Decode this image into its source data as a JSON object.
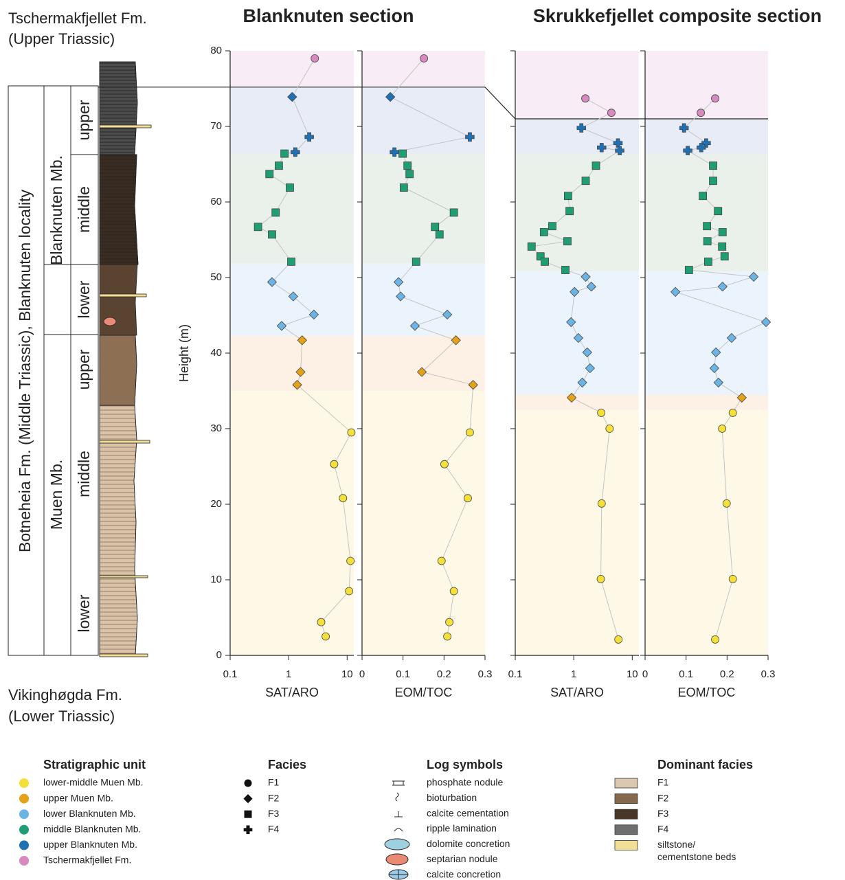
{
  "top_unit": [
    "Tschermakfjellet Fm.",
    "(Upper Triassic)"
  ],
  "bottom_unit": [
    "Vikinghøgda Fm.",
    "(Lower Triassic)"
  ],
  "stratigraphy": {
    "formation": "Botneheia Fm. (Middle Triassic), Blanknuten locality",
    "members": [
      {
        "name": "Blanknuten Mb.",
        "subunits": [
          "upper",
          "middle",
          "lower"
        ]
      },
      {
        "name": "Muen Mb.",
        "subunits": [
          "upper",
          "middle",
          "lower"
        ]
      }
    ]
  },
  "chart_data": [
    {
      "type": "scatter",
      "title": "Blanknuten section",
      "xlabel": "SAT/ARO",
      "ylabel": "Height (m)",
      "xscale": "log",
      "xlim": [
        0.1,
        13
      ],
      "xticks": [
        0.1,
        1,
        10
      ],
      "ylim": [
        0,
        80
      ],
      "yticks": [
        0,
        10,
        20,
        30,
        40,
        50,
        60,
        70,
        80
      ],
      "bands": [
        {
          "bottom": 0,
          "top": 35,
          "color": "#fdf9e6"
        },
        {
          "bottom": 35,
          "top": 42.3,
          "color": "#fdf0e4"
        },
        {
          "bottom": 42.3,
          "top": 51.9,
          "color": "#ebf3fc"
        },
        {
          "bottom": 51.9,
          "top": 66.3,
          "color": "#e9f1ea"
        },
        {
          "bottom": 66.3,
          "top": 75.2,
          "color": "#e7ecf6"
        },
        {
          "bottom": 75.2,
          "top": 80,
          "color": "#f8ecf6"
        }
      ],
      "series": [
        {
          "color": "#d889c0",
          "marker": "circle",
          "x": [
            2.8
          ],
          "y": [
            79.0
          ]
        },
        {
          "color": "#2070b4",
          "marker": "diamond",
          "x": [
            1.15
          ],
          "y": [
            73.9
          ]
        },
        {
          "color": "#2070b4",
          "marker": "cross",
          "x": [
            2.25,
            1.3
          ],
          "y": [
            68.6,
            66.6
          ]
        },
        {
          "color": "#1e9e72",
          "marker": "square",
          "x": [
            0.85,
            0.68,
            0.47,
            1.05,
            0.6,
            0.3,
            0.52,
            1.11
          ],
          "y": [
            66.4,
            64.8,
            63.7,
            61.9,
            58.6,
            56.7,
            55.7,
            52.1
          ]
        },
        {
          "color": "#6cb4e4",
          "marker": "diamond",
          "x": [
            0.52,
            1.2,
            2.7,
            0.76
          ],
          "y": [
            49.4,
            47.5,
            45.1,
            43.6
          ]
        },
        {
          "color": "#e3a21a",
          "marker": "diamond",
          "x": [
            1.7,
            1.6,
            1.4
          ],
          "y": [
            41.7,
            37.5,
            35.8
          ]
        },
        {
          "color": "#f5e03a",
          "marker": "circle",
          "x": [
            11.8,
            6.0,
            8.5,
            11.4,
            10.8,
            3.6,
            4.3
          ],
          "y": [
            29.5,
            25.3,
            20.8,
            12.5,
            8.5,
            4.4,
            2.5
          ]
        }
      ]
    },
    {
      "type": "scatter",
      "xlabel": "EOM/TOC",
      "xscale": "linear",
      "xlim": [
        0,
        0.3
      ],
      "xticks": [
        0,
        0.1,
        0.2,
        0.3
      ],
      "ylim": [
        0,
        80
      ],
      "bands": [
        {
          "bottom": 0,
          "top": 35,
          "color": "#fdf9e6"
        },
        {
          "bottom": 35,
          "top": 42.3,
          "color": "#fdf0e4"
        },
        {
          "bottom": 42.3,
          "top": 51.9,
          "color": "#ebf3fc"
        },
        {
          "bottom": 51.9,
          "top": 66.3,
          "color": "#e9f1ea"
        },
        {
          "bottom": 66.3,
          "top": 75.2,
          "color": "#e7ecf6"
        },
        {
          "bottom": 75.2,
          "top": 80,
          "color": "#f8ecf6"
        }
      ],
      "series": [
        {
          "color": "#d889c0",
          "marker": "circle",
          "x": [
            0.151
          ],
          "y": [
            79.0
          ]
        },
        {
          "color": "#2070b4",
          "marker": "diamond",
          "x": [
            0.069
          ],
          "y": [
            73.9
          ]
        },
        {
          "color": "#2070b4",
          "marker": "cross",
          "x": [
            0.263,
            0.079
          ],
          "y": [
            68.6,
            66.6
          ]
        },
        {
          "color": "#1e9e72",
          "marker": "square",
          "x": [
            0.099,
            0.111,
            0.116,
            0.102,
            0.224,
            0.178,
            0.189,
            0.132
          ],
          "y": [
            66.4,
            64.8,
            63.7,
            61.9,
            58.6,
            56.7,
            55.7,
            52.1
          ]
        },
        {
          "color": "#6cb4e4",
          "marker": "diamond",
          "x": [
            0.089,
            0.094,
            0.208,
            0.129
          ],
          "y": [
            49.4,
            47.5,
            45.1,
            43.6
          ]
        },
        {
          "color": "#e3a21a",
          "marker": "diamond",
          "x": [
            0.229,
            0.146,
            0.271
          ],
          "y": [
            41.7,
            37.5,
            35.8
          ]
        },
        {
          "color": "#f5e03a",
          "marker": "circle",
          "x": [
            0.263,
            0.201,
            0.258,
            0.194,
            0.224,
            0.213,
            0.208
          ],
          "y": [
            29.5,
            25.3,
            20.8,
            12.5,
            8.5,
            4.4,
            2.5
          ]
        }
      ]
    },
    {
      "type": "scatter",
      "title": "Skrukkefjellet composite section",
      "xlabel": "SAT/ARO",
      "xscale": "log",
      "xlim": [
        0.1,
        13
      ],
      "xticks": [
        0.1,
        1,
        10
      ],
      "ylim": [
        0,
        80
      ],
      "bands": [
        {
          "bottom": 0,
          "top": 32.5,
          "color": "#fdf9e6"
        },
        {
          "bottom": 32.5,
          "top": 34.5,
          "color": "#fdf0e4"
        },
        {
          "bottom": 34.5,
          "top": 50.8,
          "color": "#ebf3fc"
        },
        {
          "bottom": 50.8,
          "top": 66.3,
          "color": "#e9f1ea"
        },
        {
          "bottom": 66.3,
          "top": 71,
          "color": "#e7ecf6"
        },
        {
          "bottom": 71,
          "top": 80,
          "color": "#f8ecf6"
        }
      ],
      "series": [
        {
          "color": "#d889c0",
          "marker": "circle",
          "x": [
            1.58,
            4.4
          ],
          "y": [
            73.7,
            71.8
          ]
        },
        {
          "color": "#2070b4",
          "marker": "cross",
          "x": [
            1.35,
            5.7,
            3.0,
            6.1
          ],
          "y": [
            69.8,
            67.8,
            67.2,
            66.8
          ]
        },
        {
          "color": "#1e9e72",
          "marker": "square",
          "x": [
            2.4,
            1.6,
            0.8,
            0.85,
            0.43,
            0.31,
            0.78,
            0.19,
            0.27,
            0.32,
            0.72
          ],
          "y": [
            64.8,
            62.8,
            60.8,
            58.8,
            56.8,
            56.0,
            54.8,
            54.1,
            52.8,
            52.1,
            51.0
          ]
        },
        {
          "color": "#6cb4e4",
          "marker": "diamond",
          "x": [
            1.6,
            2.0,
            1.03,
            0.9,
            1.2,
            1.7,
            1.9,
            1.4
          ],
          "y": [
            50.1,
            48.8,
            48.1,
            44.1,
            42.0,
            40.1,
            38.0,
            36.1
          ]
        },
        {
          "color": "#e3a21a",
          "marker": "diamond",
          "x": [
            0.92
          ],
          "y": [
            34.1
          ]
        },
        {
          "color": "#f5e03a",
          "marker": "circle",
          "x": [
            2.95,
            4.1,
            3.0,
            2.9,
            5.8
          ],
          "y": [
            32.1,
            30.0,
            20.1,
            10.1,
            2.1
          ]
        }
      ]
    },
    {
      "type": "scatter",
      "xlabel": "EOM/TOC",
      "xscale": "linear",
      "xlim": [
        0,
        0.3
      ],
      "xticks": [
        0,
        0.1,
        0.2,
        0.3
      ],
      "ylim": [
        0,
        80
      ],
      "bands": [
        {
          "bottom": 0,
          "top": 32.5,
          "color": "#fdf9e6"
        },
        {
          "bottom": 32.5,
          "top": 34.5,
          "color": "#fdf0e4"
        },
        {
          "bottom": 34.5,
          "top": 50.8,
          "color": "#ebf3fc"
        },
        {
          "bottom": 50.8,
          "top": 66.3,
          "color": "#e9f1ea"
        },
        {
          "bottom": 66.3,
          "top": 71,
          "color": "#e7ecf6"
        },
        {
          "bottom": 71,
          "top": 80,
          "color": "#f8ecf6"
        }
      ],
      "series": [
        {
          "color": "#d889c0",
          "marker": "circle",
          "x": [
            0.171,
            0.136
          ],
          "y": [
            73.7,
            71.8
          ]
        },
        {
          "color": "#2070b4",
          "marker": "cross",
          "x": [
            0.095,
            0.149,
            0.137,
            0.104
          ],
          "y": [
            69.8,
            67.8,
            67.2,
            66.8
          ]
        },
        {
          "color": "#1e9e72",
          "marker": "square",
          "x": [
            0.166,
            0.166,
            0.141,
            0.178,
            0.151,
            0.189,
            0.152,
            0.188,
            0.194,
            0.154,
            0.107
          ],
          "y": [
            64.8,
            62.8,
            60.8,
            58.8,
            56.8,
            56.0,
            54.8,
            54.1,
            52.8,
            52.1,
            51.0
          ]
        },
        {
          "color": "#6cb4e4",
          "marker": "diamond",
          "x": [
            0.265,
            0.189,
            0.074,
            0.295,
            0.211,
            0.173,
            0.169,
            0.179
          ],
          "y": [
            50.1,
            48.8,
            48.1,
            44.1,
            42.0,
            40.1,
            38.0,
            36.1
          ]
        },
        {
          "color": "#e3a21a",
          "marker": "diamond",
          "x": [
            0.236
          ],
          "y": [
            34.1
          ]
        },
        {
          "color": "#f5e03a",
          "marker": "circle",
          "x": [
            0.214,
            0.188,
            0.199,
            0.214,
            0.171
          ],
          "y": [
            32.1,
            30.0,
            20.1,
            10.1,
            2.1
          ]
        }
      ]
    }
  ],
  "legends": {
    "units": {
      "title": "Stratigraphic unit",
      "items": [
        {
          "name": "lower-middle Muen Mb.",
          "color": "#f5e03a"
        },
        {
          "name": "upper Muen Mb.",
          "color": "#e3a21a"
        },
        {
          "name": "lower Blanknuten Mb.",
          "color": "#6cb4e4"
        },
        {
          "name": "middle Blanknuten Mb.",
          "color": "#1e9e72"
        },
        {
          "name": "upper Blanknuten Mb.",
          "color": "#2070b4"
        },
        {
          "name": "Tschermakfjellet Fm.",
          "color": "#d889c0"
        }
      ]
    },
    "facies": {
      "title": "Facies",
      "items": [
        {
          "name": "F1",
          "marker": "circle"
        },
        {
          "name": "F2",
          "marker": "diamond"
        },
        {
          "name": "F3",
          "marker": "square"
        },
        {
          "name": "F4",
          "marker": "cross"
        }
      ]
    },
    "log_symbols": {
      "title": "Log symbols",
      "items": [
        "phosphate nodule",
        "bioturbation",
        "calcite cementation",
        "ripple lamination",
        "dolomite concretion",
        "septarian nodule",
        "calcite concretion"
      ]
    },
    "dominant_facies": {
      "title": "Dominant facies",
      "items": [
        {
          "name": [
            "F1"
          ],
          "color": "#dcc7b0"
        },
        {
          "name": [
            "F2"
          ],
          "color": "#85674c"
        },
        {
          "name": [
            "F3"
          ],
          "color": "#4a3626"
        },
        {
          "name": [
            "F4"
          ],
          "color": "#6e6e6e"
        },
        {
          "name": [
            "siltstone/",
            "cementstone beds"
          ],
          "color": "#f2df95"
        }
      ]
    }
  }
}
